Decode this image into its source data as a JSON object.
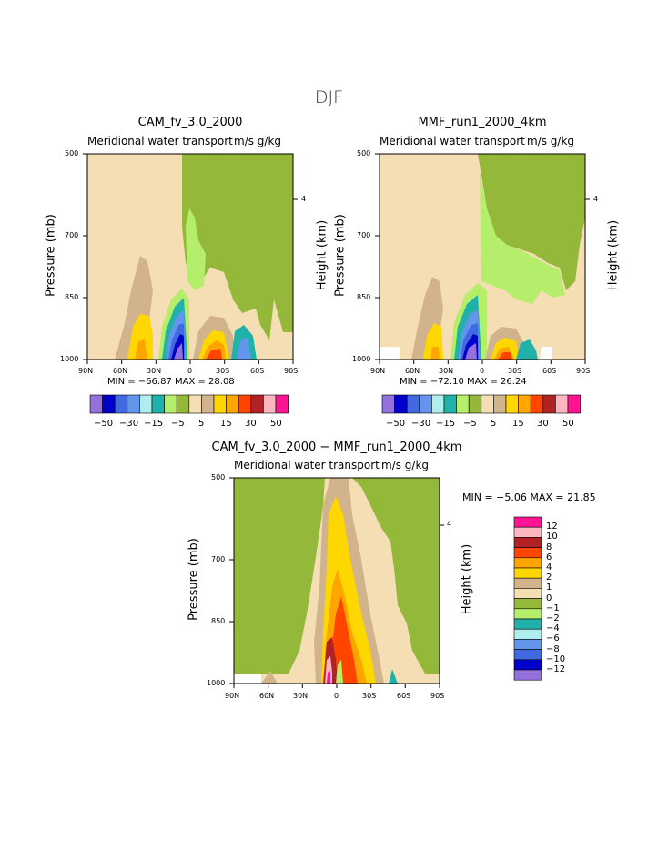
{
  "title": "DJF",
  "colors": [
    "#9370db",
    "#0000cd",
    "#4169e1",
    "#6495ed",
    "#afeeee",
    "#20b2aa",
    "#b4ee6a",
    "#93b83a",
    "#f5deb3",
    "#d2b48c",
    "#ffd700",
    "#ffa500",
    "#ff4500",
    "#b22222",
    "#ffb6c1",
    "#ff1493"
  ],
  "panels": [
    {
      "id": "left",
      "title": "CAM_fv_3.0_2000",
      "subtitle_left": "Meridional water transport",
      "subtitle_right": "m/s g/kg",
      "ylabel": "Pressure (mb)",
      "ylabel_right": "Height (km)",
      "right_tick": "4",
      "minmax": "MIN = −66.87   MAX =  28.08"
    },
    {
      "id": "right",
      "title": "MMF_run1_2000_4km",
      "subtitle_left": "Meridional water transport",
      "subtitle_right": "m/s g/kg",
      "ylabel": "Pressure (mb)",
      "ylabel_right": "Height (km)",
      "right_tick": "4",
      "minmax": "MIN = −72.10   MAX =  26.24"
    },
    {
      "id": "diff",
      "title": "CAM_fv_3.0_2000 − MMF_run1_2000_4km",
      "subtitle_left": "Meridional water transport",
      "subtitle_right": "m/s g/kg",
      "ylabel": "Pressure (mb)",
      "ylabel_right": "Height (km)",
      "right_tick": "4",
      "minmax": "MIN =   −5.06   MAX =  21.85"
    }
  ],
  "chart_data": [
    {
      "type": "heatmap",
      "title": "CAM_fv_3.0_2000",
      "subtitle": "Meridional water transport",
      "units": "m/s g/kg",
      "ylabel": "Pressure (mb)",
      "ylabel_right": "Height (km)",
      "x_ticks": [
        "90N",
        "60N",
        "30N",
        "0",
        "30S",
        "60S",
        "90S"
      ],
      "y_ticks": [
        "500",
        "700",
        "850",
        "1000"
      ],
      "ylim": [
        1000,
        500
      ],
      "min": -66.87,
      "max": 28.08,
      "colorbar_labels": [
        "−50",
        "−30",
        "−15",
        "−5",
        "5",
        "15",
        "30",
        "50"
      ]
    },
    {
      "type": "heatmap",
      "title": "MMF_run1_2000_4km",
      "subtitle": "Meridional water transport",
      "units": "m/s g/kg",
      "ylabel": "Pressure (mb)",
      "ylabel_right": "Height (km)",
      "x_ticks": [
        "90N",
        "60N",
        "30N",
        "0",
        "30S",
        "60S",
        "90S"
      ],
      "y_ticks": [
        "500",
        "700",
        "850",
        "1000"
      ],
      "ylim": [
        1000,
        500
      ],
      "min": -72.1,
      "max": 26.24,
      "colorbar_labels": [
        "−50",
        "−30",
        "−15",
        "−5",
        "5",
        "15",
        "30",
        "50"
      ]
    },
    {
      "type": "heatmap",
      "title": "CAM_fv_3.0_2000 − MMF_run1_2000_4km",
      "subtitle": "Meridional water transport",
      "units": "m/s g/kg",
      "ylabel": "Pressure (mb)",
      "ylabel_right": "Height (km)",
      "x_ticks": [
        "90N",
        "60N",
        "30N",
        "0",
        "30S",
        "60S",
        "90S"
      ],
      "y_ticks": [
        "500",
        "700",
        "850",
        "1000"
      ],
      "ylim": [
        1000,
        500
      ],
      "min": -5.06,
      "max": 21.85,
      "colorbar_labels": [
        "12",
        "10",
        "8",
        "6",
        "4",
        "2",
        "1",
        "0",
        "−1",
        "−2",
        "−4",
        "−6",
        "−8",
        "−10",
        "−12"
      ]
    }
  ]
}
